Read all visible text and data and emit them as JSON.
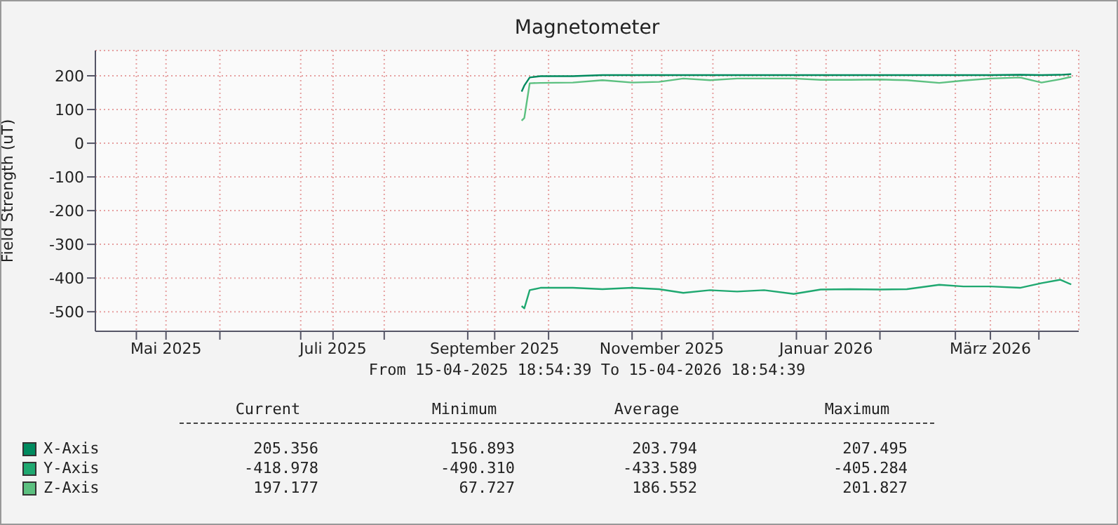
{
  "chart_data": {
    "type": "line",
    "title": "Magnetometer",
    "ylabel": "Field Strength (uT)",
    "x": [
      "2025-09-21",
      "2025-09-22",
      "2025-09-24",
      "2025-09-28",
      "2025-10-10",
      "2025-10-21",
      "2025-11-01",
      "2025-11-11",
      "2025-11-20",
      "2025-11-30",
      "2025-12-10",
      "2025-12-20",
      "2025-12-31",
      "2026-01-10",
      "2026-01-21",
      "2026-02-01",
      "2026-02-11",
      "2026-02-23",
      "2026-03-04",
      "2026-03-14",
      "2026-03-25",
      "2026-04-02",
      "2026-04-09",
      "2026-04-13"
    ],
    "series": [
      {
        "name": "X-Axis",
        "color": "#008a5e",
        "values": [
          153,
          171,
          195,
          199,
          199,
          202,
          202,
          202,
          202,
          202,
          202,
          202,
          202,
          202,
          202,
          202,
          202,
          202,
          202,
          202,
          203,
          202,
          203,
          205
        ]
      },
      {
        "name": "Y-Axis",
        "color": "#1fa870",
        "values": [
          -483,
          -490,
          -436,
          -429,
          -429,
          -433,
          -429,
          -433,
          -444,
          -436,
          -440,
          -436,
          -447,
          -434,
          -433,
          -434,
          -433,
          -420,
          -425,
          -425,
          -429,
          -415,
          -405,
          -419
        ]
      },
      {
        "name": "Z-Axis",
        "color": "#5cc080",
        "values": [
          67,
          75,
          178,
          179,
          180,
          187,
          180,
          182,
          192,
          187,
          192,
          192,
          192,
          188,
          188,
          189,
          187,
          179,
          186,
          192,
          195,
          180,
          190,
          197
        ]
      }
    ],
    "xlim": [
      "2025-04-15T18:54",
      "2026-04-15T18:54"
    ],
    "xticks": [
      {
        "value": "2025-05-01",
        "label": null
      },
      {
        "value": "2025-05-12",
        "label": "Mai 2025"
      },
      {
        "value": "2025-06-01",
        "label": null
      },
      {
        "value": "2025-07-01",
        "label": null
      },
      {
        "value": "2025-07-13",
        "label": "Juli 2025"
      },
      {
        "value": "2025-08-01",
        "label": null
      },
      {
        "value": "2025-09-01",
        "label": null
      },
      {
        "value": "2025-09-11",
        "label": "September 2025"
      },
      {
        "value": "2025-10-01",
        "label": null
      },
      {
        "value": "2025-11-01",
        "label": null
      },
      {
        "value": "2025-11-12",
        "label": "November 2025"
      },
      {
        "value": "2025-12-01",
        "label": null
      },
      {
        "value": "2026-01-01",
        "label": null
      },
      {
        "value": "2026-01-12",
        "label": "Januar 2026"
      },
      {
        "value": "2026-02-01",
        "label": null
      },
      {
        "value": "2026-03-01",
        "label": null
      },
      {
        "value": "2026-03-14",
        "label": "März 2026"
      },
      {
        "value": "2026-04-01",
        "label": null
      }
    ],
    "ylim": [
      -558,
      275
    ],
    "yticks": [
      -500,
      -400,
      -300,
      -200,
      -100,
      0,
      100,
      200
    ],
    "grid": true,
    "legend": "bottom",
    "marker": "none",
    "line_style": "solid",
    "annotations": [
      "From 15-04-2025 18:54:39 To 15-04-2026 18:54:39",
      "Current Minimum Average Maximum",
      "205.356 156.893 203.794 207.495",
      "-418.978 -490.310 -433.589 -405.284",
      "197.177 67.727 186.552 201.827"
    ]
  }
}
